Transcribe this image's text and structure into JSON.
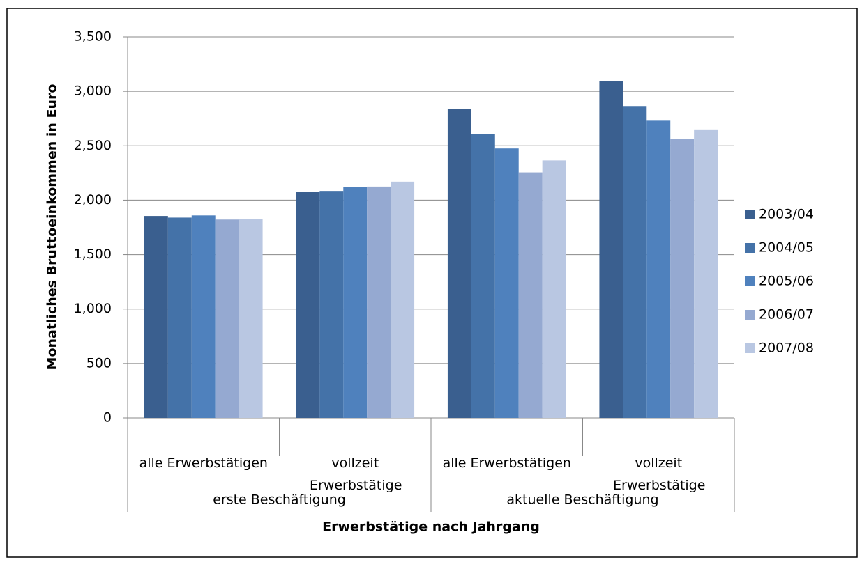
{
  "chart_data": {
    "type": "bar",
    "x_label": "Erwerbstätige nach Jahrgang",
    "y_label": "Monatliches Bruttoeinkommen in Euro",
    "categories": [
      "alle Erwerbstätigen",
      "vollzeit Erwerbstätige",
      "alle Erwerbstätigen",
      "vollzeit Erwerbstätige"
    ],
    "category_groups": [
      "erste Beschäftigung",
      "aktuelle Beschäftigung"
    ],
    "series": [
      {
        "name": "2003/04",
        "color": "#3a5f8f",
        "values": [
          1855,
          2075,
          2835,
          3095
        ]
      },
      {
        "name": "2004/05",
        "color": "#4472a8",
        "values": [
          1840,
          2085,
          2610,
          2865
        ]
      },
      {
        "name": "2005/06",
        "color": "#4f81bd",
        "values": [
          1860,
          2120,
          2475,
          2730
        ]
      },
      {
        "name": "2006/07",
        "color": "#95a9d1",
        "values": [
          1822,
          2125,
          2255,
          2565
        ]
      },
      {
        "name": "2007/08",
        "color": "#b9c7e2",
        "values": [
          1828,
          2170,
          2365,
          2650
        ]
      }
    ],
    "ylim": [
      0,
      3500
    ],
    "yticks": [
      0,
      500,
      {
        "value": 1000,
        "label": "1,000"
      },
      {
        "value": 1500,
        "label": "1,500"
      },
      {
        "value": 2000,
        "label": "2,000"
      },
      {
        "value": 2500,
        "label": "2,500"
      },
      {
        "value": 3000,
        "label": "3,000"
      },
      {
        "value": 3500,
        "label": "3,500"
      }
    ],
    "grid": true,
    "legend": "right"
  }
}
